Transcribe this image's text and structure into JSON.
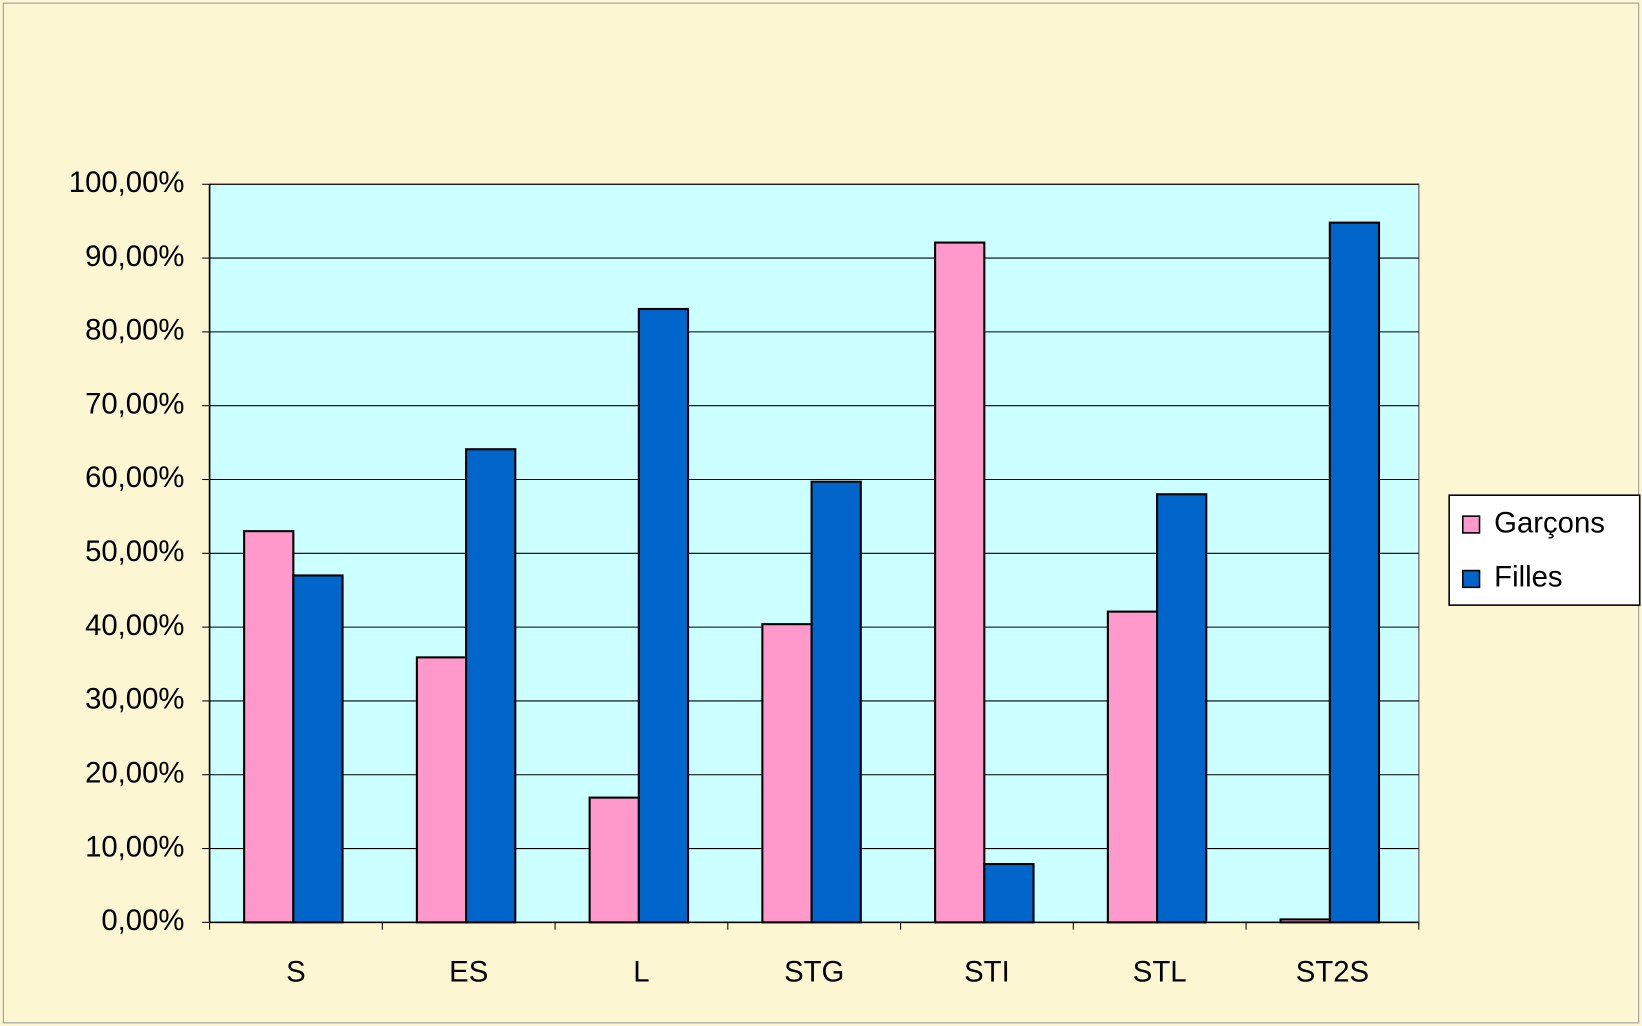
{
  "chart_data": {
    "type": "bar",
    "categories": [
      "S",
      "ES",
      "L",
      "STG",
      "STI",
      "STL",
      "ST2S"
    ],
    "series": [
      {
        "name": "Garçons",
        "color": "#ff99cc",
        "values": [
          53.0,
          35.9,
          16.9,
          40.4,
          92.1,
          42.1,
          0.4
        ]
      },
      {
        "name": "Filles",
        "color": "#0066cc",
        "values": [
          47.0,
          64.1,
          83.1,
          59.7,
          7.9,
          58.0,
          94.8
        ]
      }
    ],
    "ylim": [
      0,
      100
    ],
    "yticks": [
      {
        "value": 0,
        "label": "0,00%"
      },
      {
        "value": 10,
        "label": "10,00%"
      },
      {
        "value": 20,
        "label": "20,00%"
      },
      {
        "value": 30,
        "label": "30,00%"
      },
      {
        "value": 40,
        "label": "40,00%"
      },
      {
        "value": 50,
        "label": "50,00%"
      },
      {
        "value": 60,
        "label": "60,00%"
      },
      {
        "value": 70,
        "label": "70,00%"
      },
      {
        "value": 80,
        "label": "80,00%"
      },
      {
        "value": 90,
        "label": "90,00%"
      },
      {
        "value": 100,
        "label": "100,00%"
      }
    ],
    "grid": true,
    "plot_background": "#ccffff",
    "legend": "right"
  }
}
